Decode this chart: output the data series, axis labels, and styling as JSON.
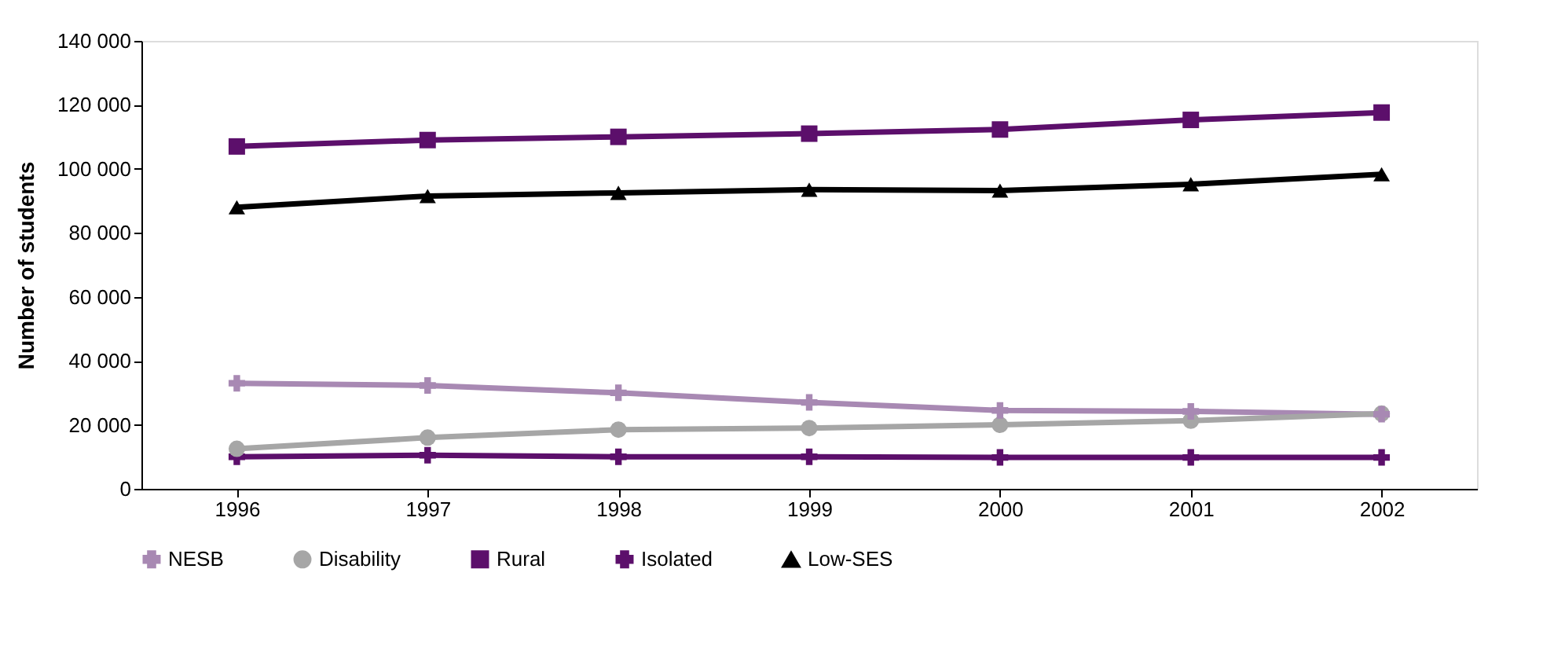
{
  "chart_data": {
    "type": "line",
    "ylabel": "Number of students",
    "categories": [
      "1996",
      "1997",
      "1998",
      "1999",
      "2000",
      "2001",
      "2002"
    ],
    "series": [
      {
        "name": "NESB",
        "color": "#a889b3",
        "marker": "cross",
        "values": [
          33000,
          32300,
          30000,
          27000,
          24500,
          24200,
          23300
        ]
      },
      {
        "name": "Disability",
        "color": "#a6a6a6",
        "marker": "circle",
        "values": [
          12500,
          16000,
          18500,
          19000,
          20000,
          21300,
          23500
        ]
      },
      {
        "name": "Rural",
        "color": "#5c0f6b",
        "marker": "square",
        "values": [
          107000,
          109000,
          110000,
          111000,
          112300,
          115300,
          117600
        ]
      },
      {
        "name": "Isolated",
        "color": "#5c0f6b",
        "marker": "cross",
        "values": [
          10000,
          10500,
          10000,
          10000,
          9800,
          9800,
          9800
        ]
      },
      {
        "name": "Low-SES",
        "color": "#000000",
        "marker": "triangle",
        "values": [
          88000,
          91500,
          92500,
          93500,
          93200,
          95200,
          98300
        ]
      }
    ],
    "ylim": [
      0,
      140000
    ],
    "yticks": [
      0,
      {
        "value": 20000,
        "label": "20 000"
      },
      {
        "value": 40000,
        "label": "40 000"
      },
      {
        "value": 60000,
        "label": "60 000"
      },
      {
        "value": 80000,
        "label": "80 000"
      },
      {
        "value": 100000,
        "label": "100 000"
      },
      {
        "value": 120000,
        "label": "120 000"
      },
      {
        "value": 140000,
        "label": "140 000"
      }
    ],
    "grid": false,
    "legend": "bottom",
    "line_style": "solid"
  }
}
